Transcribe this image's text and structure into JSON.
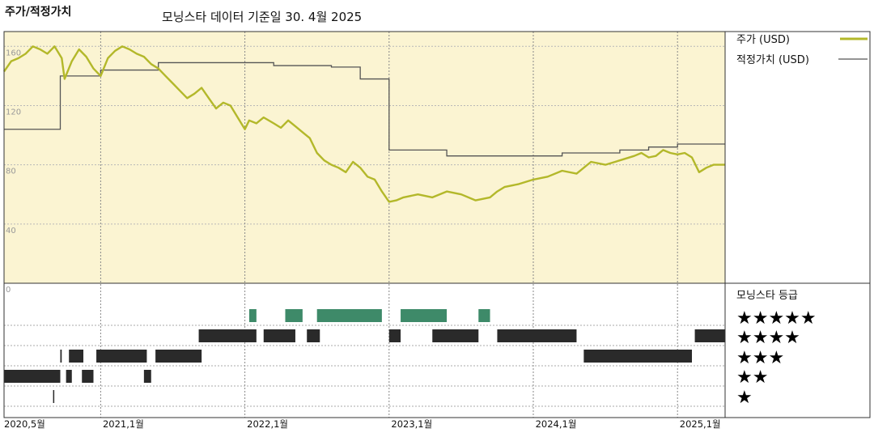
{
  "title": "주가/적정가치",
  "subtitle": "모닝스타 데이터 기준일 30. 4월 2025",
  "colors": {
    "price_line": "#b3b82a",
    "fair_value_line": "#555555",
    "chart_bg": "#fbf4d2",
    "band_5": "#3e8a69",
    "band_other": "#2a2a2a"
  },
  "chart_data": {
    "type": "line",
    "title": "주가/적정가치",
    "ylim": [
      0,
      170
    ],
    "y_ticks": [
      0,
      40,
      80,
      120,
      160
    ],
    "x_ticks": [
      {
        "label": "2020,5월",
        "date": "2020.33"
      },
      {
        "label": "2021,1월",
        "date": "2021.0"
      },
      {
        "label": "2022,1월",
        "date": "2022.0"
      },
      {
        "label": "2023,1월",
        "date": "2023.0"
      },
      {
        "label": "2024,1월",
        "date": "2024.0"
      },
      {
        "label": "2025,1월",
        "date": "2025.0"
      }
    ],
    "legend": "right",
    "series": [
      {
        "name": "주가 (USD)",
        "x": [
          2020.33,
          2020.38,
          2020.43,
          2020.48,
          2020.53,
          2020.58,
          2020.63,
          2020.68,
          2020.73,
          2020.75,
          2020.8,
          2020.85,
          2020.9,
          2020.95,
          2021.0,
          2021.05,
          2021.1,
          2021.15,
          2021.2,
          2021.25,
          2021.3,
          2021.35,
          2021.4,
          2021.45,
          2021.5,
          2021.55,
          2021.6,
          2021.65,
          2021.7,
          2021.75,
          2021.8,
          2021.85,
          2021.9,
          2021.95,
          2022.0,
          2022.03,
          2022.08,
          2022.13,
          2022.2,
          2022.25,
          2022.3,
          2022.35,
          2022.4,
          2022.45,
          2022.5,
          2022.55,
          2022.6,
          2022.65,
          2022.7,
          2022.75,
          2022.8,
          2022.85,
          2022.9,
          2022.95,
          2023.0,
          2023.05,
          2023.1,
          2023.2,
          2023.3,
          2023.4,
          2023.5,
          2023.6,
          2023.7,
          2023.75,
          2023.8,
          2023.9,
          2024.0,
          2024.1,
          2024.2,
          2024.3,
          2024.4,
          2024.5,
          2024.6,
          2024.7,
          2024.75,
          2024.8,
          2024.85,
          2024.9,
          2024.95,
          2025.0,
          2025.05,
          2025.1,
          2025.15,
          2025.2,
          2025.25,
          2025.33
        ],
        "values": [
          143,
          150,
          152,
          155,
          160,
          158,
          155,
          160,
          152,
          138,
          150,
          158,
          153,
          145,
          140,
          152,
          157,
          160,
          158,
          155,
          153,
          148,
          145,
          140,
          135,
          130,
          125,
          128,
          132,
          125,
          118,
          122,
          120,
          112,
          104,
          110,
          108,
          112,
          108,
          105,
          110,
          106,
          102,
          98,
          88,
          83,
          80,
          78,
          75,
          82,
          78,
          72,
          70,
          62,
          55,
          56,
          58,
          60,
          58,
          62,
          60,
          56,
          58,
          62,
          65,
          67,
          70,
          72,
          76,
          74,
          82,
          80,
          83,
          86,
          88,
          85,
          86,
          90,
          88,
          87,
          88,
          85,
          75,
          78,
          80,
          80
        ]
      },
      {
        "name": "적정가치 (USD)",
        "x": [
          2020.33,
          2020.7,
          2020.72,
          2021.0,
          2021.2,
          2021.4,
          2021.6,
          2021.8,
          2022.0,
          2022.2,
          2022.4,
          2022.6,
          2022.8,
          2022.95,
          2023.0,
          2023.2,
          2023.4,
          2023.6,
          2023.8,
          2024.0,
          2024.2,
          2024.4,
          2024.6,
          2024.8,
          2025.0,
          2025.33
        ],
        "values": [
          104,
          104,
          140,
          144,
          144,
          149,
          149,
          149,
          149,
          147,
          147,
          146,
          138,
          138,
          90,
          90,
          86,
          86,
          86,
          86,
          88,
          88,
          90,
          92,
          94,
          94
        ]
      }
    ]
  },
  "legend": {
    "price_label": "주가 (USD)",
    "fair_value_label": "적정가치 (USD)"
  },
  "ratings": {
    "title": "모닝스타 등급",
    "stars": [
      "★★★★★",
      "★★★★",
      "★★★",
      "★★",
      "★"
    ],
    "bands": [
      {
        "stars": 5,
        "segments": [
          [
            2022.03,
            2022.08
          ],
          [
            2022.28,
            2022.4
          ],
          [
            2022.5,
            2022.95
          ],
          [
            2023.08,
            2023.4
          ],
          [
            2023.62,
            2023.7
          ]
        ]
      },
      {
        "stars": 4,
        "segments": [
          [
            2021.68,
            2022.08
          ],
          [
            2022.13,
            2022.35
          ],
          [
            2022.43,
            2022.52
          ],
          [
            2023.0,
            2023.08
          ],
          [
            2023.3,
            2023.62
          ],
          [
            2023.75,
            2024.3
          ],
          [
            2025.12,
            2025.33
          ]
        ]
      },
      {
        "stars": 3,
        "segments": [
          [
            2020.72,
            2020.73
          ],
          [
            2020.78,
            2020.88
          ],
          [
            2020.97,
            2021.32
          ],
          [
            2021.38,
            2021.7
          ],
          [
            2024.35,
            2025.1
          ]
        ]
      },
      {
        "stars": 2,
        "segments": [
          [
            2020.33,
            2020.72
          ],
          [
            2020.76,
            2020.8
          ],
          [
            2020.87,
            2020.95
          ],
          [
            2021.3,
            2021.35
          ]
        ]
      },
      {
        "stars": 1,
        "segments": [
          [
            2020.67,
            2020.675
          ]
        ]
      }
    ]
  }
}
